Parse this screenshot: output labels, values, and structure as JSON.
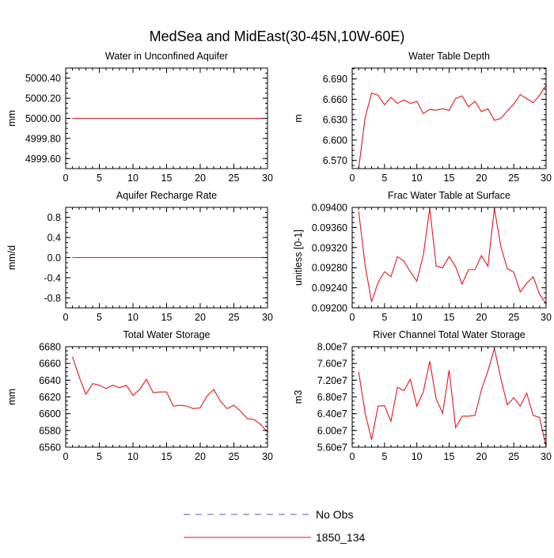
{
  "figure": {
    "title": "MedSea and MidEast(30-45N,10W-60E)"
  },
  "legend": {
    "entries": [
      {
        "label": "No Obs",
        "color": "#5a5aa8",
        "dash": true
      },
      {
        "label": "1850_134",
        "color": "#e8141c",
        "dash": false
      }
    ]
  },
  "chart_data": [
    {
      "type": "line",
      "title": "Water in Unconfined Aquifer",
      "ylabel": "mm",
      "xlim": [
        0,
        30
      ],
      "ylim": [
        4999.5,
        5000.5
      ],
      "xticks": [
        0,
        5,
        10,
        15,
        20,
        25,
        30
      ],
      "yticks": [
        4999.6,
        4999.8,
        5000.0,
        5000.2,
        5000.4
      ],
      "ytick_labels": [
        "4999.60",
        "4999.80",
        "5000.00",
        "5000.20",
        "5000.40"
      ],
      "series": [
        {
          "name": "1850_134",
          "color": "#e8141c",
          "x": [
            1,
            30
          ],
          "y": [
            5000.0,
            5000.0
          ]
        }
      ]
    },
    {
      "type": "line",
      "title": "Water Table Depth",
      "ylabel": "m",
      "xlim": [
        0,
        30
      ],
      "ylim": [
        6.558,
        6.706
      ],
      "xticks": [
        0,
        5,
        10,
        15,
        20,
        25,
        30
      ],
      "yticks": [
        6.57,
        6.6,
        6.63,
        6.66,
        6.69
      ],
      "ytick_labels": [
        "6.570",
        "6.600",
        "6.630",
        "6.660",
        "6.690"
      ],
      "series": [
        {
          "name": "1850_134",
          "color": "#e8141c",
          "x": [
            1,
            2,
            3,
            4,
            5,
            6,
            7,
            8,
            9,
            10,
            11,
            12,
            13,
            14,
            15,
            16,
            17,
            18,
            19,
            20,
            21,
            22,
            23,
            24,
            25,
            26,
            27,
            28,
            29,
            30
          ],
          "y": [
            6.558,
            6.633,
            6.669,
            6.666,
            6.652,
            6.663,
            6.654,
            6.659,
            6.654,
            6.657,
            6.639,
            6.645,
            6.644,
            6.646,
            6.644,
            6.661,
            6.665,
            6.649,
            6.657,
            6.642,
            6.646,
            6.629,
            6.632,
            6.643,
            6.653,
            6.667,
            6.661,
            6.655,
            6.666,
            6.681
          ]
        }
      ]
    },
    {
      "type": "line",
      "title": "Aquifer Recharge Rate",
      "ylabel": "mm/d",
      "xlim": [
        0,
        30
      ],
      "ylim": [
        -1.0,
        1.0
      ],
      "xticks": [
        0,
        5,
        10,
        15,
        20,
        25,
        30
      ],
      "yticks": [
        -0.8,
        -0.4,
        0.0,
        0.4,
        0.8
      ],
      "ytick_labels": [
        "-0.8",
        "-0.4",
        "0.0",
        "0.4",
        "0.8"
      ],
      "series": [
        {
          "name": "1850_134",
          "color": "#e8141c",
          "x": [
            1,
            30
          ],
          "y": [
            0.0,
            0.0
          ]
        }
      ]
    },
    {
      "type": "line",
      "title": "Frac Water Table at Surface",
      "ylabel": "unitless [0-1]",
      "xlim": [
        0,
        30
      ],
      "ylim": [
        0.092,
        0.094
      ],
      "xticks": [
        0,
        5,
        10,
        15,
        20,
        25,
        30
      ],
      "yticks": [
        0.092,
        0.0924,
        0.0928,
        0.0932,
        0.0936,
        0.094
      ],
      "ytick_labels": [
        "0.09200",
        "0.09240",
        "0.09280",
        "0.09320",
        "0.09360",
        "0.09400"
      ],
      "series": [
        {
          "name": "1850_134",
          "color": "#e8141c",
          "x": [
            1,
            2,
            3,
            4,
            5,
            6,
            7,
            8,
            9,
            10,
            11,
            12,
            13,
            14,
            15,
            16,
            17,
            18,
            19,
            20,
            21,
            22,
            23,
            24,
            25,
            26,
            27,
            28,
            29,
            30
          ],
          "y": [
            0.09392,
            0.09285,
            0.09212,
            0.0925,
            0.09272,
            0.09262,
            0.09302,
            0.09293,
            0.09272,
            0.09253,
            0.09305,
            0.09398,
            0.09283,
            0.0928,
            0.09302,
            0.09282,
            0.09247,
            0.09276,
            0.09276,
            0.09304,
            0.09283,
            0.09398,
            0.09322,
            0.09278,
            0.09271,
            0.09232,
            0.09249,
            0.09262,
            0.09227,
            0.09208
          ]
        }
      ]
    },
    {
      "type": "line",
      "title": "Total Water Storage",
      "ylabel": "mm",
      "xlim": [
        0,
        30
      ],
      "ylim": [
        6560,
        6680
      ],
      "xticks": [
        0,
        5,
        10,
        15,
        20,
        25,
        30
      ],
      "yticks": [
        6560,
        6580,
        6600,
        6620,
        6640,
        6660,
        6680
      ],
      "ytick_labels": [
        "6560",
        "6580",
        "6600",
        "6620",
        "6640",
        "6660",
        "6680"
      ],
      "series": [
        {
          "name": "1850_134",
          "color": "#e8141c",
          "x": [
            1,
            2,
            3,
            4,
            5,
            6,
            7,
            8,
            9,
            10,
            11,
            12,
            13,
            14,
            15,
            16,
            17,
            18,
            19,
            20,
            21,
            22,
            23,
            24,
            25,
            26,
            27,
            28,
            29,
            30
          ],
          "y": [
            6668,
            6644,
            6623,
            6636,
            6634,
            6630,
            6634,
            6631,
            6634,
            6622,
            6629,
            6641,
            6625,
            6626,
            6626,
            6609,
            6610,
            6609,
            6606,
            6607,
            6621,
            6629,
            6615,
            6606,
            6610,
            6603,
            6594,
            6593,
            6587,
            6578
          ]
        }
      ]
    },
    {
      "type": "line",
      "title": "River Channel Total Water Storage",
      "ylabel": "m3",
      "xlim": [
        0,
        30
      ],
      "ylim": [
        56000000,
        80000000
      ],
      "xticks": [
        0,
        5,
        10,
        15,
        20,
        25,
        30
      ],
      "yticks": [
        56000000,
        60000000,
        64000000,
        68000000,
        72000000,
        76000000,
        80000000
      ],
      "ytick_labels": [
        "5.60e7",
        "6.00e7",
        "6.40e7",
        "6.80e7",
        "7.20e7",
        "7.60e7",
        "8.00e7"
      ],
      "series": [
        {
          "name": "1850_134",
          "color": "#e8141c",
          "x": [
            1,
            2,
            3,
            4,
            5,
            6,
            7,
            8,
            9,
            10,
            11,
            12,
            13,
            14,
            15,
            16,
            17,
            18,
            19,
            20,
            21,
            22,
            23,
            24,
            25,
            26,
            27,
            28,
            29,
            30
          ],
          "y": [
            74000000,
            64200000,
            57800000,
            65800000,
            65900000,
            62200000,
            70300000,
            69500000,
            72200000,
            65800000,
            69200000,
            76500000,
            67500000,
            64100000,
            74400000,
            60700000,
            63400000,
            63400000,
            63600000,
            69700000,
            74200000,
            79600000,
            72400000,
            66100000,
            67800000,
            65800000,
            68900000,
            63600000,
            63100000,
            56000000
          ]
        }
      ]
    }
  ]
}
